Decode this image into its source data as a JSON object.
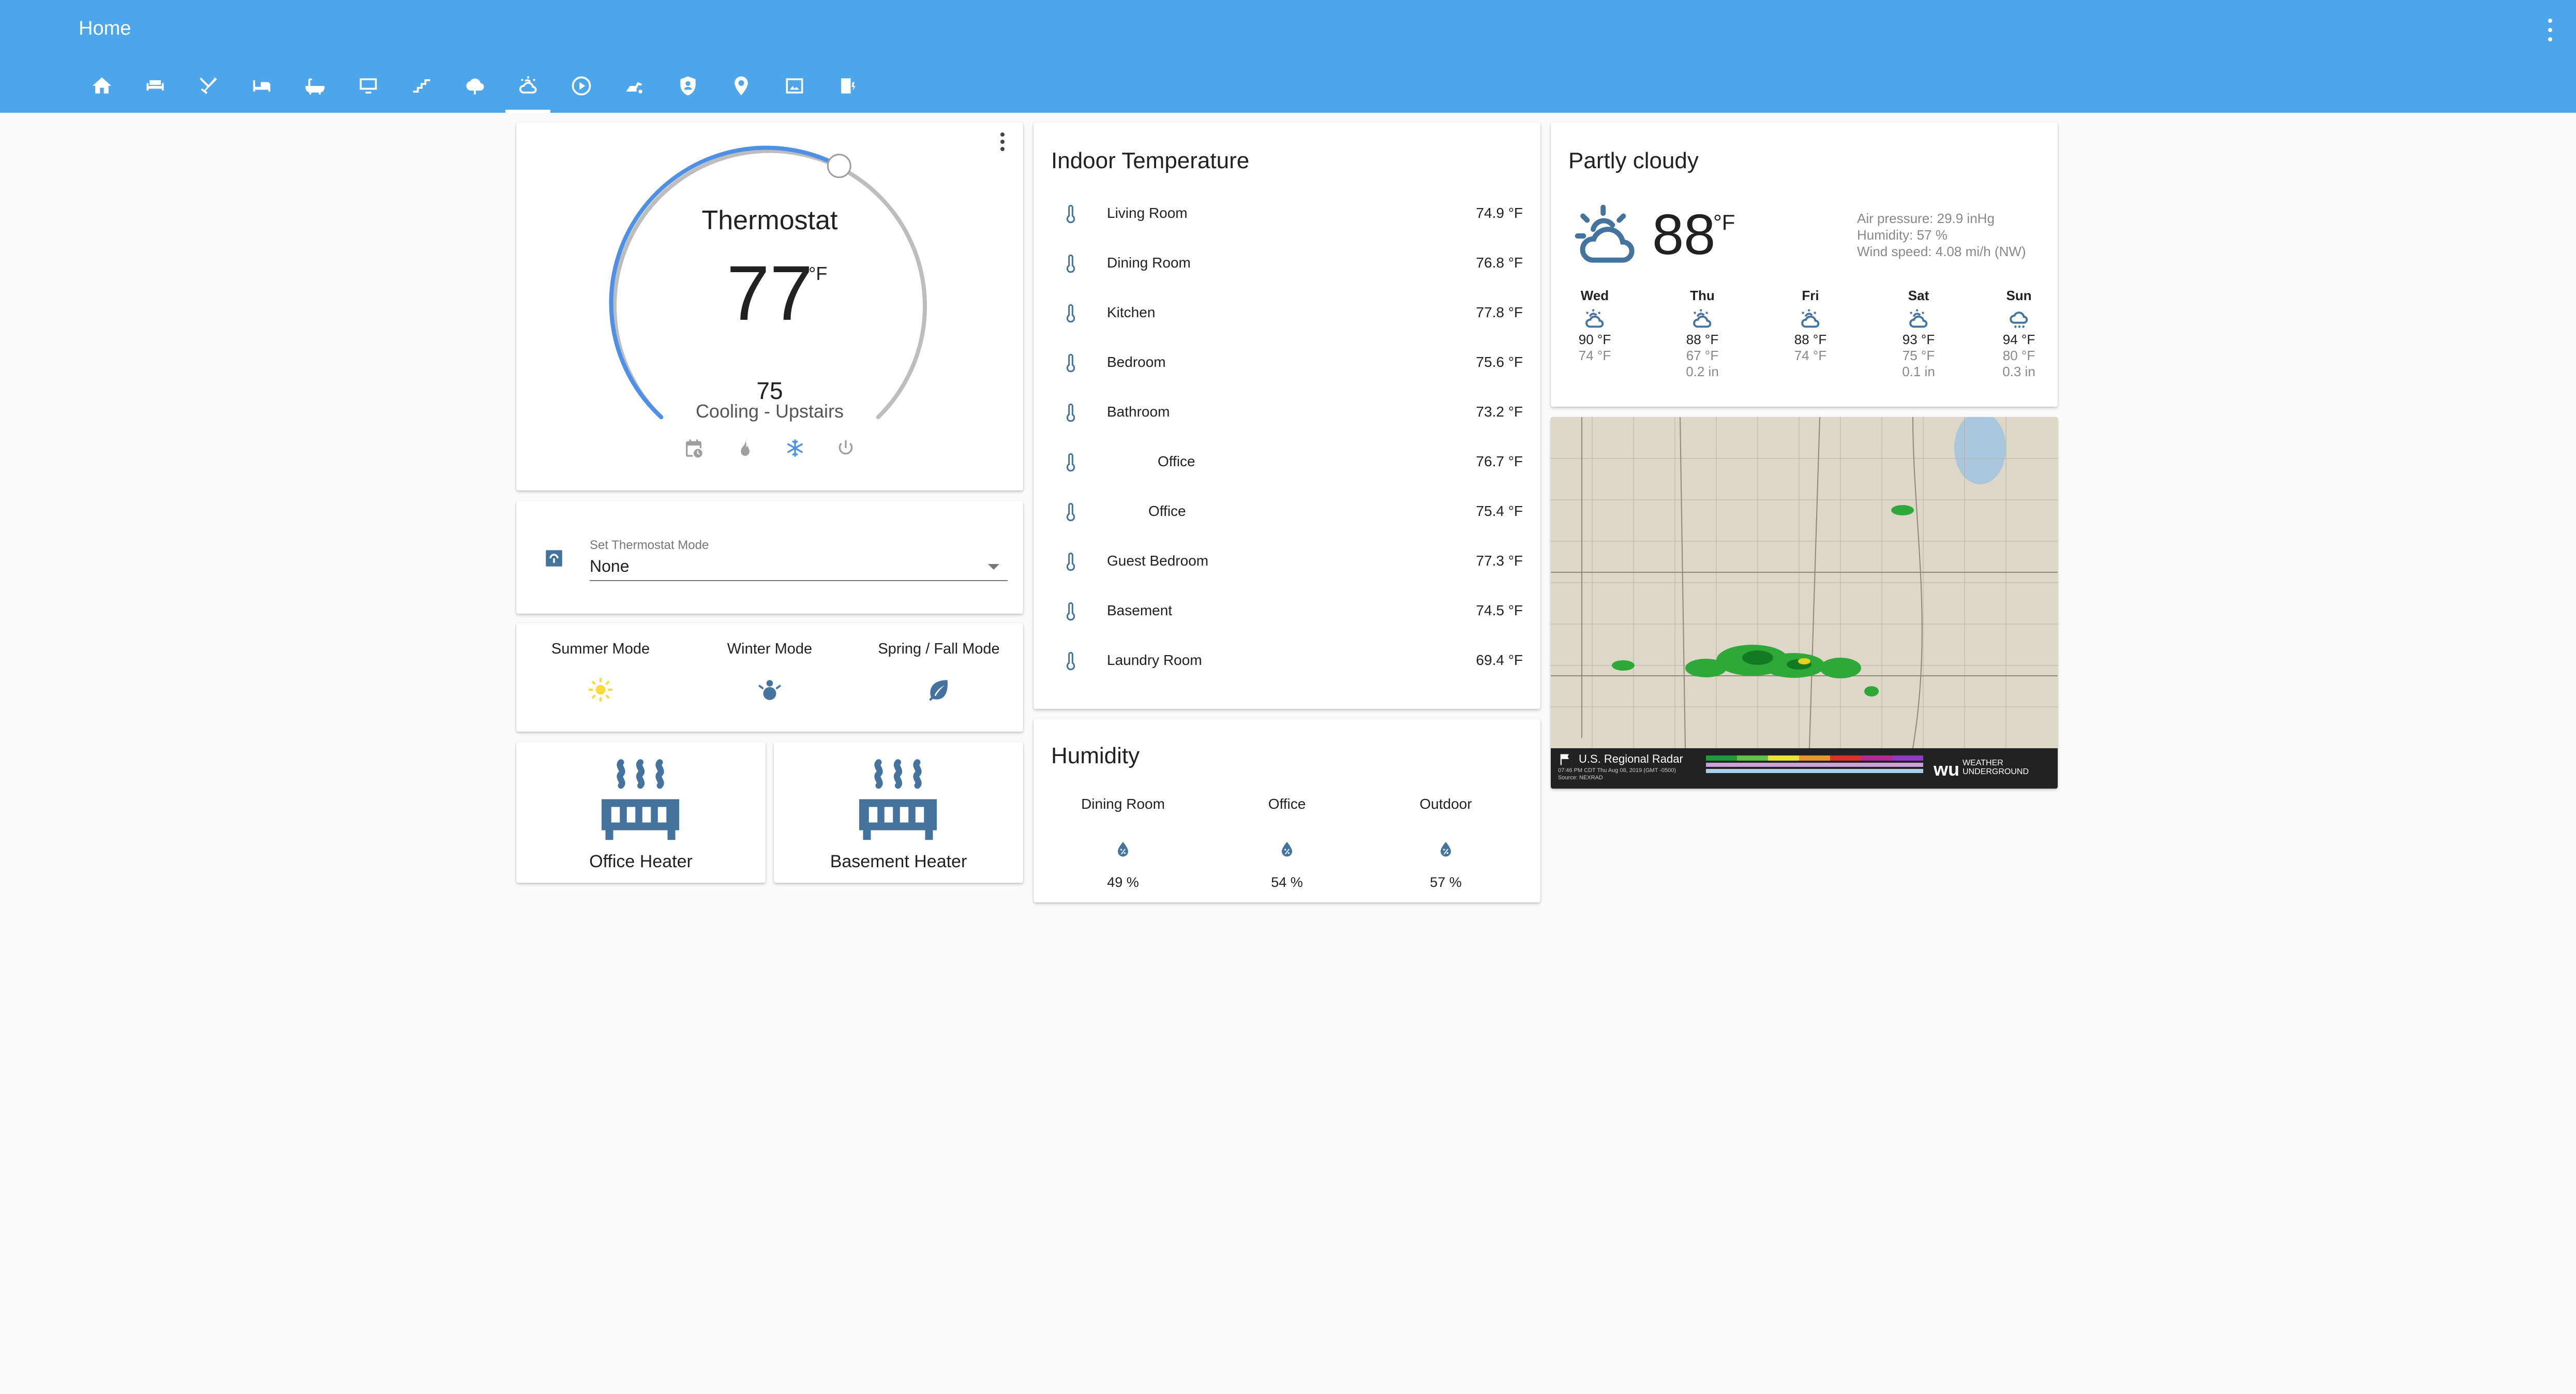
{
  "app": {
    "title": "Home"
  },
  "tabs": [
    {
      "name": "home-icon"
    },
    {
      "name": "sofa-icon"
    },
    {
      "name": "silverware-icon"
    },
    {
      "name": "bed-icon"
    },
    {
      "name": "bathtub-icon"
    },
    {
      "name": "monitor-icon"
    },
    {
      "name": "stairs-icon"
    },
    {
      "name": "tree-icon"
    },
    {
      "name": "weather-partly-cloudy-icon",
      "active": true
    },
    {
      "name": "play-circle-icon"
    },
    {
      "name": "robot-vacuum-icon"
    },
    {
      "name": "security-shield-icon"
    },
    {
      "name": "map-marker-icon"
    },
    {
      "name": "image-icon"
    },
    {
      "name": "water-heater-icon"
    }
  ],
  "colors": {
    "header": "#4da6ea",
    "accent": "#4d90e6",
    "icon": "#44739e",
    "sun": "#fdd93c"
  },
  "thermostat": {
    "name": "Thermostat",
    "current": "77",
    "unit": "°F",
    "target": "75",
    "status": "Cooling - Upstairs",
    "modes": [
      "calendar-clock-icon",
      "fire-icon",
      "snowflake-icon",
      "power-icon"
    ],
    "active_mode": "snowflake-icon"
  },
  "mode_select": {
    "label": "Set Thermostat Mode",
    "value": "None"
  },
  "seasons": [
    {
      "label": "Summer Mode",
      "icon": "sun-icon"
    },
    {
      "label": "Winter Mode",
      "icon": "snowman-icon"
    },
    {
      "label": "Spring / Fall Mode",
      "icon": "leaf-icon"
    }
  ],
  "heaters": [
    {
      "label": "Office Heater"
    },
    {
      "label": "Basement Heater"
    }
  ],
  "indoor": {
    "title": "Indoor Temperature",
    "rows": [
      {
        "name": "Living Room",
        "value": "74.9 °F"
      },
      {
        "name": "Dining Room",
        "value": "76.8 °F"
      },
      {
        "name": "Kitchen",
        "value": "77.8 °F"
      },
      {
        "name": "Bedroom",
        "value": "75.6 °F"
      },
      {
        "name": "Bathroom",
        "value": "73.2 °F"
      },
      {
        "name": "Office",
        "value": "76.7 °F"
      },
      {
        "name": "Office",
        "value": "75.4 °F"
      },
      {
        "name": "Guest Bedroom",
        "value": "77.3 °F"
      },
      {
        "name": "Basement",
        "value": "74.5 °F"
      },
      {
        "name": "Laundry Room",
        "value": "69.4 °F"
      }
    ]
  },
  "humidity": {
    "title": "Humidity",
    "cols": [
      {
        "name": "Dining Room",
        "value": "49 %"
      },
      {
        "name": "Office",
        "value": "54 %"
      },
      {
        "name": "Outdoor",
        "value": "57 %"
      }
    ]
  },
  "weather": {
    "condition": "Partly cloudy",
    "temp": "88",
    "unit": "°F",
    "pressure": "Air pressure: 29.9 inHg",
    "humidity": "Humidity: 57 %",
    "wind": "Wind speed: 4.08 mi/h (NW)",
    "forecast": [
      {
        "day": "Wed",
        "hi": "90 °F",
        "lo": "74 °F",
        "precip": "",
        "icon": "partly-cloudy-icon"
      },
      {
        "day": "Thu",
        "hi": "88 °F",
        "lo": "67 °F",
        "precip": "0.2 in",
        "icon": "partly-cloudy-icon"
      },
      {
        "day": "Fri",
        "hi": "88 °F",
        "lo": "74 °F",
        "precip": "",
        "icon": "partly-cloudy-icon"
      },
      {
        "day": "Sat",
        "hi": "93 °F",
        "lo": "75 °F",
        "precip": "0.1 in",
        "icon": "partly-cloudy-icon"
      },
      {
        "day": "Sun",
        "hi": "94 °F",
        "lo": "80 °F",
        "precip": "0.3 in",
        "icon": "rainy-icon"
      }
    ]
  },
  "radar": {
    "title": "U.S. Regional Radar",
    "subtitle": "07:46 PM CDT Thu Aug 08, 2019 (GMT -0500)",
    "source": "Source: NEXRAD",
    "brand_line1": "WEATHER",
    "brand_line2": "UNDERGROUND",
    "logo": "wu"
  }
}
